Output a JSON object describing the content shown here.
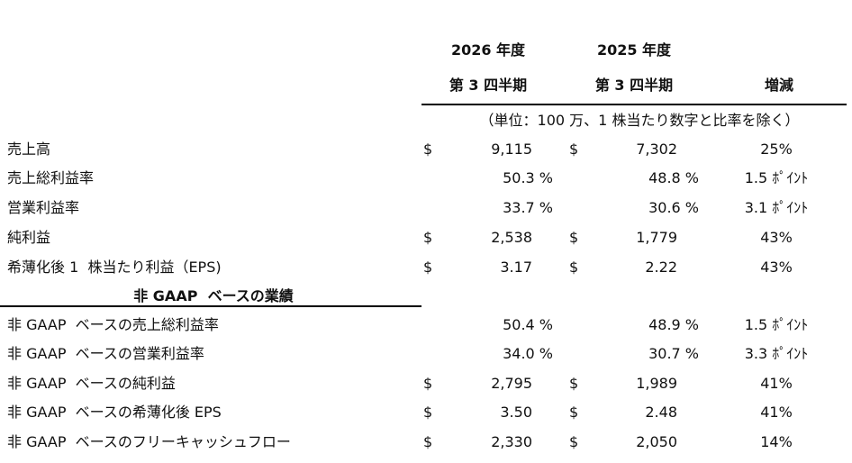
{
  "header": {
    "col1": [
      "2026 年度",
      "第 3 四半期"
    ],
    "col2": [
      "2025 年度",
      "第 3 四半期"
    ],
    "change": "増減"
  },
  "unit_note": "（単位：100 万、1 株当たり数字と比率を除く）",
  "rows": [
    {
      "label": "売上高",
      "cur1": "$",
      "v1": "9,115",
      "cur2": "$",
      "v2": "7,302",
      "change": "25%"
    },
    {
      "label": "売上総利益率",
      "v1": "50.3 %",
      "v2": "48.8 %",
      "change": "1.5 ﾎﾟｲﾝﾄ"
    },
    {
      "label": "営業利益率",
      "v1": "33.7 %",
      "v2": "30.6 %",
      "change": "3.1 ﾎﾟｲﾝﾄ"
    },
    {
      "label": "純利益",
      "cur1": "$",
      "v1": "2,538",
      "cur2": "$",
      "v2": "1,779",
      "change": "43%"
    },
    {
      "label": "希薄化後 1  株当たり利益（EPS)",
      "cur1": "$",
      "v1": "3.17",
      "cur2": "$",
      "v2": "2.22",
      "change": "43%"
    }
  ],
  "section": "非 GAAP  ベースの業績",
  "section_rows": [
    {
      "label": "非 GAAP  ベースの売上総利益率",
      "v1": "50.4 %",
      "v2": "48.9 %",
      "change": "1.5 ﾎﾟｲﾝﾄ"
    },
    {
      "label": "非 GAAP  ベースの営業利益率",
      "v1": "34.0 %",
      "v2": "30.7 %",
      "change": "3.3 ﾎﾟｲﾝﾄ"
    },
    {
      "label": "非 GAAP  ベースの純利益",
      "cur1": "$",
      "v1": "2,795",
      "cur2": "$",
      "v2": "1,989",
      "change": "41%"
    },
    {
      "label": "非 GAAP  ベースの希薄化後 EPS",
      "cur1": "$",
      "v1": "3.50",
      "cur2": "$",
      "v2": "2.48",
      "change": "41%"
    },
    {
      "label": "非 GAAP  ベースのフリーキャッシュフロー",
      "cur1": "$",
      "v1": "2,330",
      "cur2": "$",
      "v2": "2,050",
      "change": "14%"
    }
  ]
}
